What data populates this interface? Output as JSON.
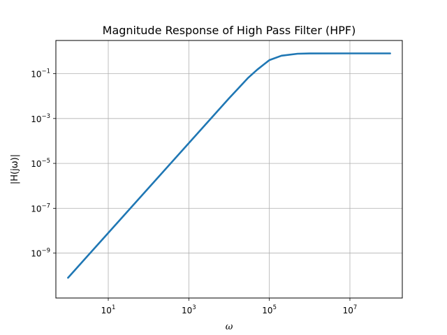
{
  "chart_data": {
    "type": "line",
    "title": "Magnitude Response of High Pass Filter (HPF)",
    "xlabel": "ω",
    "ylabel": "|H(jω)|",
    "xscale": "log",
    "yscale": "log",
    "xlim": [
      0.5,
      200000000
    ],
    "ylim": [
      1e-11,
      3
    ],
    "grid": true,
    "x_ticks": [
      {
        "base": "10",
        "exp": "1",
        "value": 10
      },
      {
        "base": "10",
        "exp": "3",
        "value": 1000
      },
      {
        "base": "10",
        "exp": "5",
        "value": 100000
      },
      {
        "base": "10",
        "exp": "7",
        "value": 10000000
      }
    ],
    "y_ticks": [
      {
        "base": "10",
        "exp": "−1",
        "value": 0.1
      },
      {
        "base": "10",
        "exp": "−3",
        "value": 0.001
      },
      {
        "base": "10",
        "exp": "−5",
        "value": 1e-05
      },
      {
        "base": "10",
        "exp": "−7",
        "value": 1e-07
      },
      {
        "base": "10",
        "exp": "−9",
        "value": 1e-09
      }
    ],
    "series": [
      {
        "color": "#1f77b4",
        "x": [
          1,
          10,
          100,
          1000,
          10000,
          30000,
          50000,
          100000,
          200000,
          500000,
          1000000,
          10000000,
          100000000
        ],
        "y": [
          8e-11,
          8e-09,
          8e-07,
          8e-05,
          0.008,
          0.066,
          0.15,
          0.4,
          0.63,
          0.77,
          0.79,
          0.8,
          0.8
        ]
      }
    ]
  }
}
